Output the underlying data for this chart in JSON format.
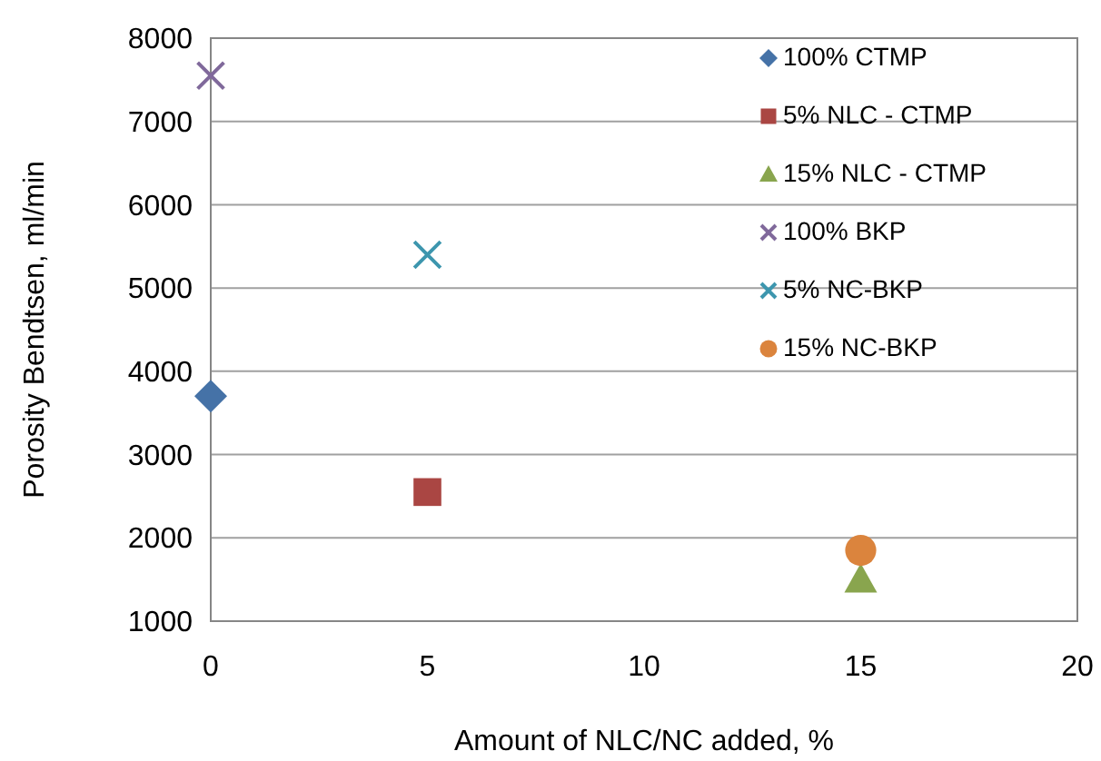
{
  "chart_data": {
    "type": "scatter",
    "xlabel": "Amount of NLC/NC added, %",
    "ylabel": "Porosity Bendtsen, ml/min",
    "xlim": [
      0,
      20
    ],
    "xticks": [
      0,
      5,
      10,
      15,
      20
    ],
    "ylim": [
      1000,
      8000
    ],
    "yticks": [
      1000,
      2000,
      3000,
      4000,
      5000,
      6000,
      7000,
      8000
    ],
    "grid": "y",
    "legend": "top right",
    "series": [
      {
        "name": "100% CTMP",
        "color": "#4572a7",
        "marker": "diamond",
        "x": [
          0
        ],
        "values": [
          3700
        ]
      },
      {
        "name": "5% NLC - CTMP",
        "color": "#aa4643",
        "marker": "square",
        "x": [
          5
        ],
        "values": [
          2550
        ]
      },
      {
        "name": "15% NLC - CTMP",
        "color": "#89a54e",
        "marker": "triangle",
        "x": [
          15
        ],
        "values": [
          1500
        ]
      },
      {
        "name": "100% BKP",
        "color": "#80699b",
        "marker": "cross",
        "x": [
          0
        ],
        "values": [
          7550
        ]
      },
      {
        "name": "5% NC-BKP",
        "color": "#3d96ae",
        "marker": "cross",
        "x": [
          5
        ],
        "values": [
          5400
        ]
      },
      {
        "name": "15% NC-BKP",
        "color": "#db843d",
        "marker": "circle",
        "x": [
          15
        ],
        "values": [
          1850
        ]
      }
    ]
  }
}
